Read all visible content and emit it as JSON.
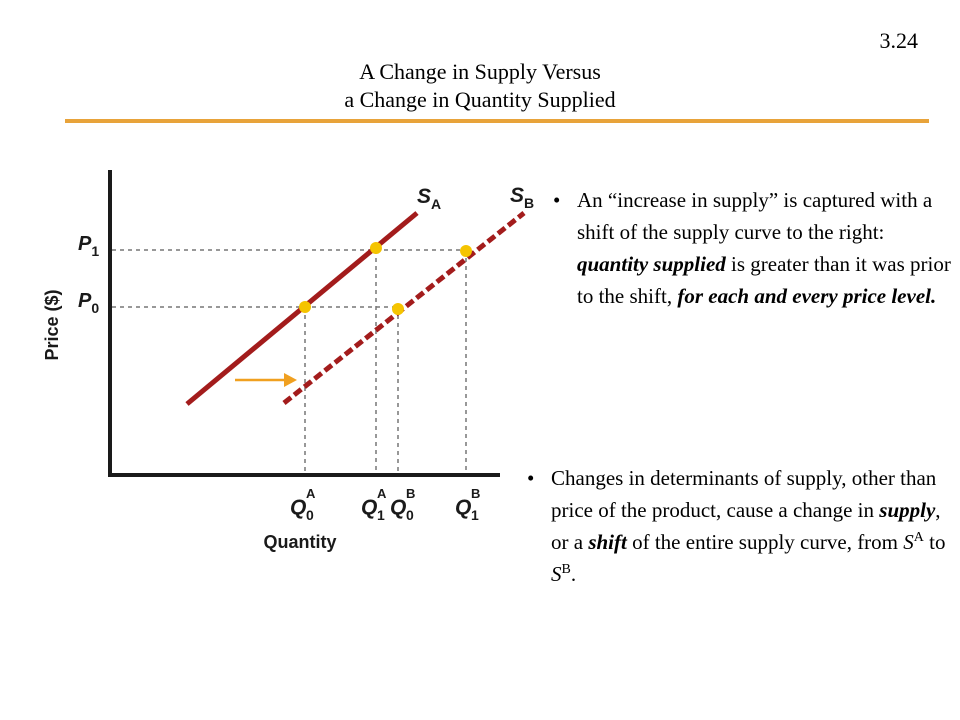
{
  "slide_number": "3.24",
  "title": {
    "line1": "A Change in Supply Versus",
    "line2": "a Change in Quantity Supplied"
  },
  "diagram": {
    "y_axis_label": "Price ($)",
    "x_axis_label": "Quantity",
    "price_levels": [
      {
        "main": "P",
        "sub": "1"
      },
      {
        "main": "P",
        "sub": "0"
      }
    ],
    "curves": [
      {
        "main": "S",
        "sub": "A",
        "color": "#a31c1c",
        "style": "solid"
      },
      {
        "main": "S",
        "sub": "B",
        "color": "#a31c1c",
        "style": "dashed"
      }
    ],
    "quantity_ticks": [
      {
        "main": "Q",
        "sub": "0",
        "sup": "A"
      },
      {
        "main": "Q",
        "sub": "1",
        "sup": "A"
      },
      {
        "main": "Q",
        "sub": "0",
        "sup": "B"
      },
      {
        "main": "Q",
        "sub": "1",
        "sup": "B"
      }
    ],
    "marker_color": "#f5c400",
    "arrow_color": "#f0a020"
  },
  "bullets": {
    "first": {
      "marker": "•",
      "p1": "An “increase in supply” is captured with a shift of the supply curve to the right: ",
      "p2": "quantity supplied",
      "p3": " is greater than it was prior to the shift, ",
      "p4": "for each and every price level."
    },
    "second": {
      "marker": "•",
      "p1": "Changes in determinants of supply, other than price of the product, cause a change in ",
      "p2": "supply",
      "p3": ", or a ",
      "p4": "shift",
      "p5": " of the entire supply curve, from ",
      "p6": "S",
      "p7": "A",
      "p8": " to ",
      "p9": "S",
      "p10": "B",
      "p11": "."
    }
  }
}
